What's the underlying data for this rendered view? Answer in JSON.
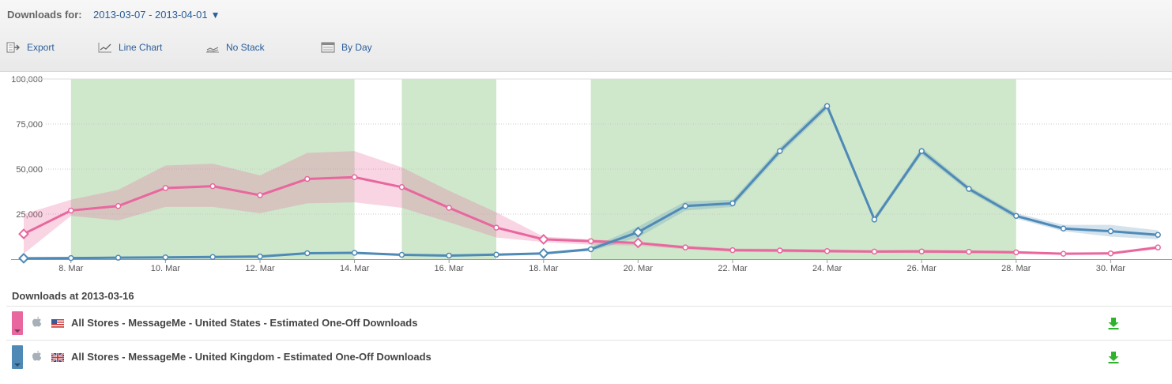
{
  "header": {
    "downloads_for_label": "Downloads for:",
    "date_range": "2013-03-07 - 2013-04-01",
    "date_range_caret": "▼"
  },
  "toolbar": {
    "export_label": "Export",
    "chart_type_label": "Line Chart",
    "stack_label": "No Stack",
    "granularity_label": "By Day",
    "icons": [
      "export-icon",
      "line-chart-icon",
      "no-stack-icon",
      "calendar-icon"
    ]
  },
  "colors": {
    "us_series": "#e8679e",
    "uk_series": "#4f8ab6",
    "highlight_band": "#cfe8cc",
    "download_arrow": "#27a827"
  },
  "chart_data": {
    "type": "line",
    "x": [
      "2013-03-07",
      "2013-03-08",
      "2013-03-09",
      "2013-03-10",
      "2013-03-11",
      "2013-03-12",
      "2013-03-13",
      "2013-03-14",
      "2013-03-15",
      "2013-03-16",
      "2013-03-17",
      "2013-03-18",
      "2013-03-19",
      "2013-03-20",
      "2013-03-21",
      "2013-03-22",
      "2013-03-23",
      "2013-03-24",
      "2013-03-25",
      "2013-03-26",
      "2013-03-27",
      "2013-03-28",
      "2013-03-29",
      "2013-03-30",
      "2013-03-31"
    ],
    "x_tick_labels": [
      "8. Mar",
      "10. Mar",
      "12. Mar",
      "14. Mar",
      "16. Mar",
      "18. Mar",
      "20. Mar",
      "22. Mar",
      "24. Mar",
      "26. Mar",
      "28. Mar",
      "30. Mar"
    ],
    "x_ticks": [
      "2013-03-08",
      "2013-03-10",
      "2013-03-12",
      "2013-03-14",
      "2013-03-16",
      "2013-03-18",
      "2013-03-20",
      "2013-03-22",
      "2013-03-24",
      "2013-03-26",
      "2013-03-28",
      "2013-03-30"
    ],
    "y_tick_labels": [
      "100,000",
      "75,000",
      "50,000",
      "25,000"
    ],
    "y_ticks": [
      100000,
      75000,
      50000,
      25000
    ],
    "ylim": [
      0,
      100000
    ],
    "grid": true,
    "highlight_ranges": [
      [
        "2013-03-08",
        "2013-03-14"
      ],
      [
        "2013-03-15",
        "2013-03-17"
      ],
      [
        "2013-03-19",
        "2013-03-28"
      ]
    ],
    "series": [
      {
        "values": [
          14000,
          27000,
          29500,
          39500,
          40500,
          35500,
          44500,
          45500,
          40000,
          28500,
          17500,
          11000,
          10000,
          9000,
          6500,
          5000,
          4800,
          4500,
          4200,
          4300,
          4100,
          3800,
          3000,
          3200,
          6500
        ],
        "band_low": [
          3000,
          24000,
          21500,
          29000,
          29000,
          25500,
          31000,
          31500,
          28500,
          20500,
          12000,
          9500,
          8000,
          7500,
          5500,
          4000,
          3800,
          3500,
          3500,
          3300,
          3200,
          3000,
          2500,
          2700,
          5500
        ],
        "band_high": [
          25000,
          33000,
          38500,
          52000,
          53000,
          46500,
          59000,
          60000,
          51000,
          38000,
          26000,
          12500,
          11000,
          9500,
          7500,
          6000,
          5800,
          5500,
          5000,
          5300,
          5000,
          4600,
          3500,
          3800,
          7500
        ],
        "color": "#e8679e"
      },
      {
        "values": [
          500,
          600,
          800,
          1000,
          1200,
          1500,
          3300,
          3500,
          2400,
          2000,
          2500,
          3200,
          5500,
          15000,
          29500,
          31000,
          60000,
          85000,
          22000,
          60000,
          39000,
          24000,
          17000,
          15500,
          13500
        ],
        "band_low": [
          400,
          500,
          600,
          800,
          1000,
          1200,
          2800,
          3000,
          2000,
          1700,
          2100,
          2800,
          4500,
          12000,
          27000,
          29000,
          58000,
          83000,
          20500,
          58000,
          37500,
          22500,
          15500,
          12500,
          11000
        ],
        "band_high": [
          600,
          700,
          1000,
          1200,
          1400,
          1800,
          3800,
          4000,
          2800,
          2300,
          2900,
          3700,
          6500,
          18000,
          32000,
          33000,
          62000,
          87000,
          23500,
          62000,
          40500,
          25500,
          19000,
          19000,
          16000
        ],
        "color": "#4f8ab6"
      }
    ]
  },
  "legend": {
    "title": "Downloads at 2013-03-16",
    "rows": [
      {
        "label": "All Stores - MessageMe - United States - Estimated One-Off Downloads",
        "color": "#e8679e",
        "flag": "us-flag-icon"
      },
      {
        "label": "All Stores - MessageMe - United Kingdom - Estimated One-Off Downloads",
        "color": "#4f8ab6",
        "flag": "uk-flag-icon"
      }
    ]
  }
}
